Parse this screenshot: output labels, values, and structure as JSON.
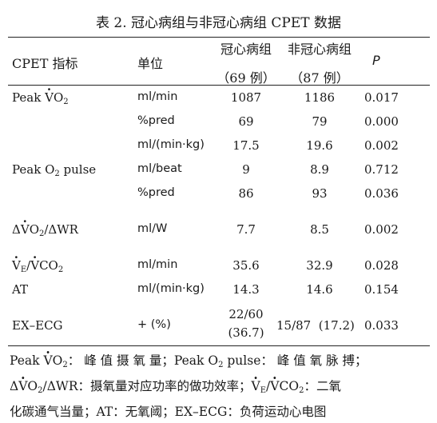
{
  "title": "表 2. 冠心病组与非冠心病组 CPET 数据",
  "headers": {
    "indicator": "CPET 指标",
    "unit": "单位",
    "chd": "冠心病组",
    "chd_n": "（69 例）",
    "nonchd": "非冠心病组",
    "nonchd_n": "（87 例）",
    "p": "P"
  },
  "rows": [
    {
      "indicator": "Peak VO2",
      "unit": "ml/min",
      "chd": "1087",
      "nonchd": "1186",
      "p": "0.017"
    },
    {
      "indicator": "",
      "unit": "%pred",
      "chd": "69",
      "nonchd": "79",
      "p": "0.000"
    },
    {
      "indicator": "",
      "unit": "ml/(min·kg)",
      "chd": "17.5",
      "nonchd": "19.6",
      "p": "0.002"
    },
    {
      "indicator": "Peak O2 pulse",
      "unit": "ml/beat",
      "chd": "9",
      "nonchd": "8.9",
      "p": "0.712"
    },
    {
      "indicator": "",
      "unit": "%pred",
      "chd": "86",
      "nonchd": "93",
      "p": "0.036"
    },
    {
      "indicator": "ΔVO2/ΔWR",
      "unit": "ml/W",
      "chd": "7.7",
      "nonchd": "8.5",
      "p": "0.002"
    },
    {
      "indicator": "VE/VCO2",
      "unit": "ml/min",
      "chd": "35.6",
      "nonchd": "32.9",
      "p": "0.028"
    },
    {
      "indicator": "AT",
      "unit": "ml/(min·kg)",
      "chd": "14.3",
      "nonchd": "14.6",
      "p": "0.154"
    },
    {
      "indicator": "EX–ECG",
      "unit": "+ (%)",
      "chd": "22/60",
      "chd_2": "(36.7)",
      "nonchd": "15/87  (17.2)",
      "p": "0.033"
    }
  ],
  "notes": {
    "line1a": "Peak VO2：",
    "line1b": "峰值摄氧量；",
    "line1c": "Peak O2 pulse：",
    "line1d": "峰值氧脉搏；",
    "line2a": "ΔVO2/ΔWR：",
    "line2b": "摄氧量对应功率的做功效率；",
    "line2c": "VE/VCO2：",
    "line2d": "二氧",
    "line3": "化碳通气当量；AT：无氧阈；EX–ECG：负荷运动心电图"
  }
}
